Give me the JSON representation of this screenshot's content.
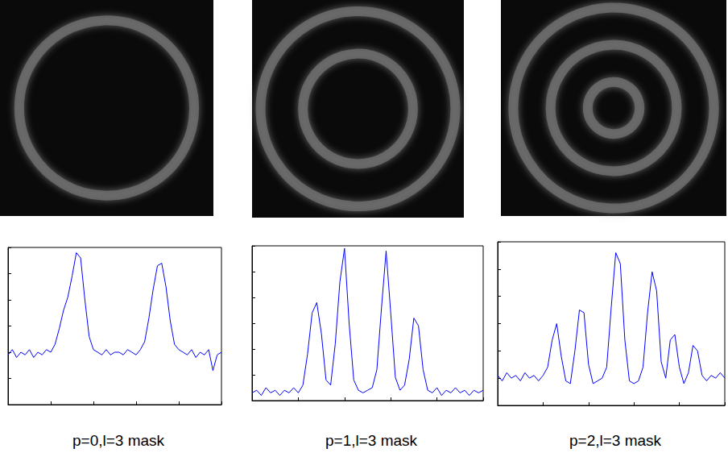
{
  "chart_data": [
    {
      "type": "line",
      "title": "p=0,l=3 mask",
      "color": "#0000ff",
      "grid": false,
      "tick_labels": false,
      "xlim": [
        0,
        100
      ],
      "xticks": [
        0,
        20,
        40,
        60,
        80,
        100
      ],
      "ylim": [
        0,
        6
      ],
      "yticks": [
        0,
        1,
        2,
        3,
        4,
        5,
        6
      ],
      "x": [
        0,
        2,
        4,
        6,
        8,
        10,
        12,
        14,
        16,
        18,
        20,
        22,
        24,
        26,
        28,
        30,
        32,
        34,
        36,
        38,
        40,
        42,
        44,
        46,
        48,
        50,
        52,
        54,
        56,
        58,
        60,
        62,
        64,
        66,
        68,
        70,
        72,
        74,
        76,
        78,
        80,
        82,
        84,
        86,
        88,
        90,
        92,
        94,
        96,
        98,
        100
      ],
      "values": [
        1.9,
        2.1,
        1.8,
        2.0,
        1.9,
        2.1,
        1.8,
        2.0,
        1.9,
        2.1,
        2.0,
        2.3,
        2.9,
        3.6,
        4.1,
        4.9,
        5.8,
        5.6,
        4.0,
        2.6,
        2.1,
        2.0,
        1.9,
        2.1,
        1.9,
        2.0,
        2.0,
        1.9,
        2.1,
        2.0,
        1.9,
        2.1,
        2.4,
        3.3,
        4.4,
        5.3,
        5.4,
        4.5,
        3.2,
        2.3,
        2.1,
        2.0,
        1.9,
        2.1,
        1.8,
        2.0,
        1.9,
        2.1,
        1.3,
        1.9,
        2.0
      ],
      "rings": [
        0.82
      ]
    },
    {
      "type": "line",
      "title": "p=1,l=3 mask",
      "color": "#0000ff",
      "grid": false,
      "tick_labels": false,
      "xlim": [
        0,
        100
      ],
      "xticks": [
        0,
        20,
        40,
        60,
        80,
        100
      ],
      "ylim": [
        0,
        6
      ],
      "yticks": [
        0,
        1,
        2,
        3,
        4,
        5,
        6
      ],
      "x": [
        0,
        2,
        4,
        6,
        8,
        10,
        12,
        14,
        16,
        18,
        20,
        22,
        24,
        26,
        28,
        30,
        32,
        34,
        36,
        38,
        40,
        42,
        44,
        46,
        48,
        50,
        52,
        54,
        56,
        58,
        60,
        62,
        64,
        66,
        68,
        70,
        72,
        74,
        76,
        78,
        80,
        82,
        84,
        86,
        88,
        90,
        92,
        94,
        96,
        98,
        100
      ],
      "values": [
        0.3,
        0.4,
        0.2,
        0.5,
        0.3,
        0.4,
        0.2,
        0.4,
        0.3,
        0.5,
        0.3,
        0.6,
        1.8,
        3.4,
        3.8,
        2.6,
        0.8,
        0.6,
        2.2,
        4.6,
        5.9,
        3.0,
        0.8,
        0.4,
        0.3,
        0.4,
        0.5,
        1.2,
        3.6,
        5.8,
        3.4,
        0.9,
        0.4,
        0.6,
        1.6,
        3.2,
        2.9,
        1.2,
        0.4,
        0.3,
        0.5,
        0.2,
        0.4,
        0.3,
        0.5,
        0.3,
        0.4,
        0.2,
        0.4,
        0.3,
        0.4
      ],
      "rings": [
        0.52,
        0.92
      ]
    },
    {
      "type": "line",
      "title": "p=2,l=3 mask",
      "color": "#0000ff",
      "grid": false,
      "tick_labels": false,
      "xlim": [
        0,
        100
      ],
      "xticks": [
        0,
        20,
        40,
        60,
        80,
        100
      ],
      "ylim": [
        0,
        6
      ],
      "yticks": [
        0,
        1,
        2,
        3,
        4,
        5,
        6
      ],
      "x": [
        0,
        2,
        4,
        6,
        8,
        10,
        12,
        14,
        16,
        18,
        20,
        22,
        24,
        26,
        28,
        30,
        32,
        34,
        36,
        38,
        40,
        42,
        44,
        46,
        48,
        50,
        52,
        54,
        56,
        58,
        60,
        62,
        64,
        66,
        68,
        70,
        72,
        74,
        76,
        78,
        80,
        82,
        84,
        86,
        88,
        90,
        92,
        94,
        96,
        98,
        100
      ],
      "values": [
        1.1,
        0.9,
        1.2,
        1.0,
        1.1,
        0.9,
        1.2,
        1.0,
        1.1,
        0.9,
        1.1,
        1.4,
        2.4,
        3.0,
        1.8,
        0.9,
        0.8,
        2.0,
        3.5,
        3.4,
        1.5,
        0.8,
        0.9,
        1.0,
        1.4,
        3.6,
        5.6,
        5.2,
        2.4,
        0.9,
        0.8,
        0.9,
        1.4,
        3.4,
        4.9,
        4.2,
        1.6,
        1.0,
        2.4,
        2.6,
        1.4,
        0.8,
        1.2,
        2.2,
        2.0,
        1.1,
        0.9,
        1.1,
        1.0,
        1.2,
        1.0
      ],
      "rings": [
        0.23,
        0.56,
        0.89
      ]
    }
  ]
}
